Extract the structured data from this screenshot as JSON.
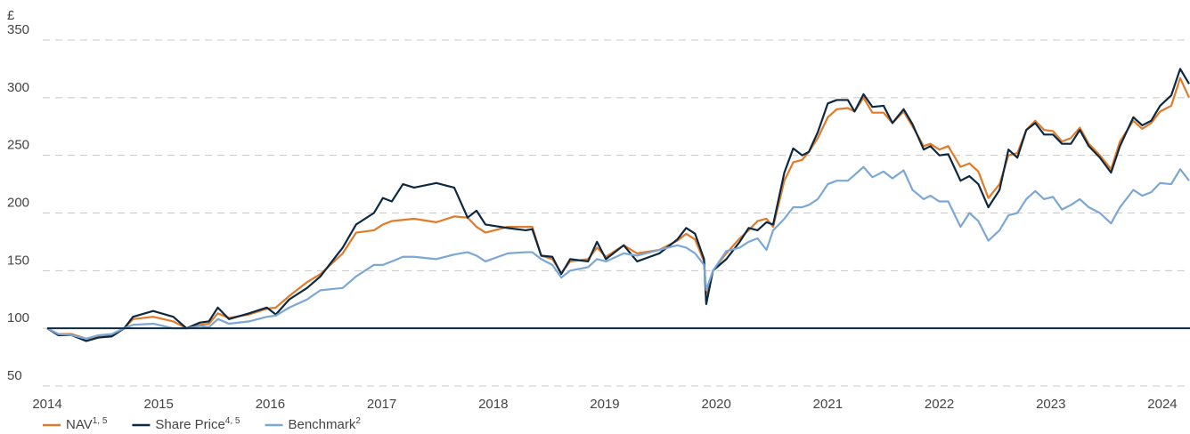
{
  "chart_data": {
    "type": "line",
    "y_unit_label": "£",
    "xlim": [
      2014,
      2024.24
    ],
    "xticks": [
      2014,
      2015,
      2016,
      2017,
      2018,
      2019,
      2020,
      2021,
      2022,
      2023,
      2024
    ],
    "ylim": [
      50,
      350
    ],
    "yticks": [
      50,
      100,
      150,
      200,
      250,
      300,
      350
    ],
    "grid": true,
    "reference_line": 100,
    "legend": "bottom-left",
    "x": [
      2014.0,
      2014.1,
      2014.22,
      2014.35,
      2014.46,
      2014.58,
      2014.69,
      2014.77,
      2014.95,
      2015.13,
      2015.25,
      2015.37,
      2015.45,
      2015.53,
      2015.63,
      2015.81,
      2015.97,
      2016.05,
      2016.17,
      2016.33,
      2016.45,
      2016.65,
      2016.77,
      2016.93,
      2017.01,
      2017.09,
      2017.19,
      2017.29,
      2017.49,
      2017.65,
      2017.77,
      2017.85,
      2017.93,
      2018.13,
      2018.29,
      2018.35,
      2018.43,
      2018.53,
      2018.61,
      2018.69,
      2018.85,
      2018.93,
      2019.01,
      2019.17,
      2019.29,
      2019.49,
      2019.65,
      2019.73,
      2019.81,
      2019.89,
      2019.91,
      2019.97,
      2020.09,
      2020.21,
      2020.29,
      2020.37,
      2020.45,
      2020.51,
      2020.61,
      2020.69,
      2020.77,
      2020.83,
      2020.91,
      2021.0,
      2021.08,
      2021.18,
      2021.24,
      2021.32,
      2021.4,
      2021.5,
      2021.58,
      2021.68,
      2021.76,
      2021.86,
      2021.92,
      2022.0,
      2022.08,
      2022.19,
      2022.27,
      2022.35,
      2022.44,
      2022.54,
      2022.62,
      2022.7,
      2022.78,
      2022.86,
      2022.94,
      2023.02,
      2023.1,
      2023.18,
      2023.26,
      2023.34,
      2023.44,
      2023.54,
      2023.62,
      2023.74,
      2023.82,
      2023.9,
      2023.98,
      2024.08,
      2024.16,
      2024.24
    ],
    "series": [
      {
        "name": "NAV",
        "superscript": "1, 5",
        "color": "#e07b2a",
        "values": [
          100,
          95,
          95,
          91,
          93,
          94,
          100,
          108,
          110,
          106,
          100,
          103,
          104,
          113,
          109,
          112,
          117,
          118,
          128,
          140,
          147,
          165,
          183,
          185,
          190,
          193,
          194,
          195,
          192,
          197,
          196,
          188,
          183,
          188,
          188,
          188,
          163,
          160,
          148,
          158,
          160,
          170,
          162,
          172,
          165,
          168,
          176,
          182,
          177,
          158,
          130,
          150,
          165,
          178,
          185,
          193,
          195,
          188,
          228,
          244,
          246,
          253,
          265,
          283,
          290,
          291,
          288,
          300,
          287,
          287,
          278,
          288,
          275,
          258,
          260,
          255,
          258,
          240,
          243,
          236,
          213,
          225,
          250,
          252,
          272,
          280,
          272,
          271,
          262,
          265,
          274,
          260,
          250,
          238,
          262,
          280,
          273,
          278,
          288,
          293,
          317,
          300
        ]
      },
      {
        "name": "Share Price",
        "superscript": "4, 5",
        "color": "#0d2840",
        "values": [
          100,
          94,
          94,
          89,
          92,
          93,
          100,
          110,
          115,
          110,
          100,
          105,
          106,
          118,
          108,
          113,
          118,
          112,
          125,
          135,
          145,
          170,
          190,
          200,
          213,
          210,
          225,
          222,
          226,
          222,
          196,
          202,
          190,
          187,
          185,
          186,
          163,
          162,
          147,
          160,
          158,
          175,
          160,
          172,
          158,
          165,
          177,
          187,
          182,
          160,
          121,
          150,
          160,
          175,
          187,
          185,
          192,
          190,
          235,
          256,
          250,
          253,
          270,
          295,
          298,
          298,
          288,
          303,
          292,
          293,
          278,
          290,
          277,
          255,
          258,
          250,
          251,
          228,
          232,
          225,
          205,
          220,
          255,
          248,
          272,
          278,
          268,
          268,
          260,
          260,
          272,
          258,
          248,
          235,
          258,
          283,
          276,
          280,
          293,
          302,
          325,
          312
        ]
      },
      {
        "name": "Benchmark",
        "superscript": "2",
        "color": "#7ba7d6",
        "values": [
          100,
          95,
          94,
          91,
          94,
          95,
          100,
          103,
          104,
          100,
          100,
          102,
          101,
          108,
          104,
          106,
          110,
          111,
          118,
          125,
          133,
          135,
          145,
          155,
          155,
          158,
          162,
          162,
          160,
          164,
          166,
          163,
          158,
          165,
          166,
          166,
          160,
          155,
          144,
          150,
          153,
          160,
          158,
          165,
          163,
          168,
          172,
          170,
          165,
          155,
          133,
          150,
          167,
          170,
          175,
          178,
          168,
          185,
          195,
          205,
          205,
          207,
          212,
          225,
          228,
          228,
          233,
          240,
          231,
          236,
          230,
          237,
          220,
          212,
          215,
          210,
          210,
          188,
          200,
          193,
          176,
          185,
          198,
          200,
          212,
          219,
          212,
          214,
          203,
          207,
          212,
          205,
          200,
          191,
          205,
          220,
          215,
          218,
          226,
          225,
          238,
          228
        ]
      }
    ]
  }
}
